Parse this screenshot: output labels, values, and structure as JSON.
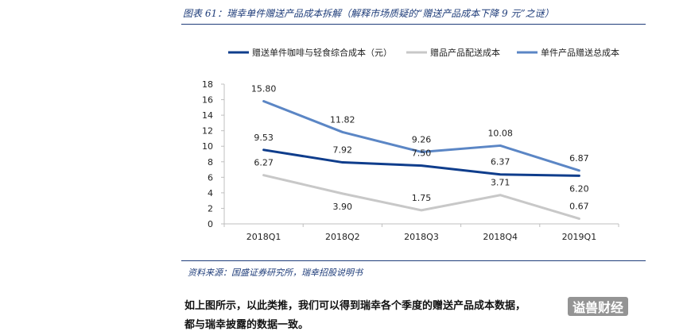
{
  "figure_title": "图表 61：瑞幸单件赠送产品成本拆解（解释市场质疑的“赠送产品成本下降 9 元”之谜）",
  "source": "资料来源：国盛证券研究所，瑞幸招股说明书",
  "body_text": {
    "line1": "如上图所示，以此类推，我们可以得到瑞幸各个季度的赠送产品成本数据，",
    "line2": "都与瑞幸披露的数据一致。"
  },
  "watermark": "谥兽财经",
  "colors": {
    "series1": "#0f3d8c",
    "series2": "#c8c8c8",
    "series3": "#5b86c5",
    "axis": "#bfbfbf",
    "label": "#222222"
  },
  "chart_data": {
    "type": "line",
    "title": "",
    "xlabel": "",
    "ylabel": "",
    "categories": [
      "2018Q1",
      "2018Q2",
      "2018Q3",
      "2018Q4",
      "2019Q1"
    ],
    "ylim": [
      0,
      18
    ],
    "yticks": [
      0,
      2,
      4,
      6,
      8,
      10,
      12,
      14,
      16,
      18
    ],
    "grid": false,
    "legend_position": "top",
    "series": [
      {
        "name": "赠送单件咖啡与轻食综合成本（元）",
        "values": [
          9.53,
          7.92,
          7.5,
          6.37,
          6.2
        ],
        "labels": [
          "9.53",
          "7.92",
          "7.50",
          "6.37",
          "6.20"
        ]
      },
      {
        "name": "赠品产品配送成本",
        "values": [
          6.27,
          3.9,
          1.75,
          3.71,
          0.67
        ],
        "labels": [
          "6.27",
          "3.90",
          "1.75",
          "3.71",
          "0.67"
        ]
      },
      {
        "name": "单件产品赠送总成本",
        "values": [
          15.8,
          11.82,
          9.26,
          10.08,
          6.87
        ],
        "labels": [
          "15.80",
          "11.82",
          "9.26",
          "10.08",
          "6.87"
        ]
      }
    ]
  }
}
